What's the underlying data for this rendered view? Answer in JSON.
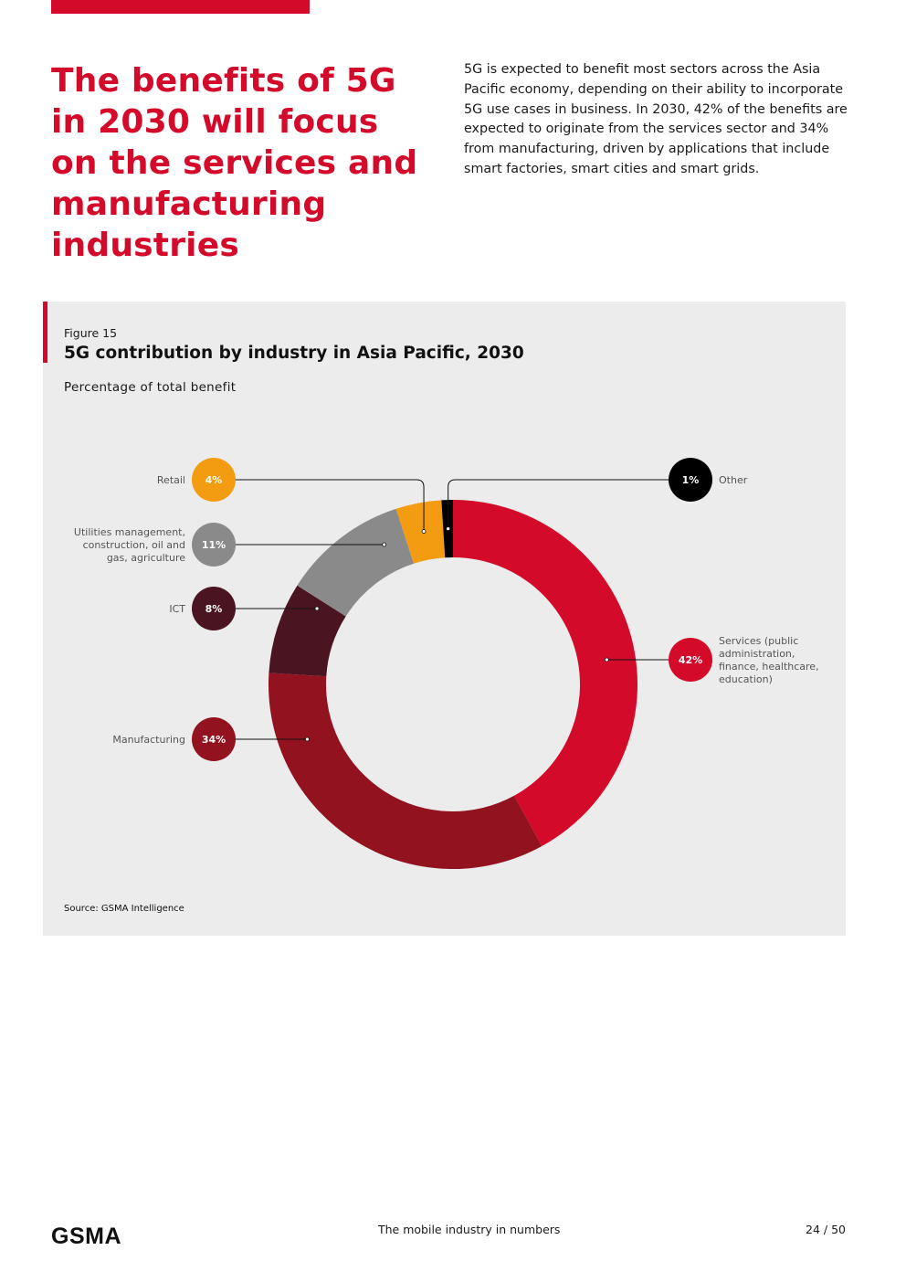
{
  "page": {
    "headline": "The benefits of 5G in 2030 will focus on the services and manufacturing industries",
    "intro": "5G is expected to benefit most sectors across the Asia Pacific economy, depending on their ability to incorporate 5G use cases in business. In 2030, 42% of the benefits are expected to originate from the services sector and 34% from manufacturing, driven by applications that include smart factories, smart cities and smart grids."
  },
  "figure": {
    "label": "Figure 15",
    "source": "Source: GSMA Intelligence"
  },
  "chart_data": {
    "type": "pie",
    "title": "5G contribution by industry in Asia Pacific, 2030",
    "subtitle": "Percentage of total benefit",
    "donut": true,
    "slices": [
      {
        "name": "Services (public administration, finance, healthcare, education)",
        "label_lines": [
          "Services (public",
          "administration,",
          "finance, healthcare,",
          "education)"
        ],
        "value": 42,
        "value_label": "42%",
        "color": "#d40a2a",
        "text_color": "#ffffff",
        "side": "right"
      },
      {
        "name": "Manufacturing",
        "label_lines": [
          "Manufacturing"
        ],
        "value": 34,
        "value_label": "34%",
        "color": "#93121f",
        "text_color": "#ffffff",
        "side": "left"
      },
      {
        "name": "ICT",
        "label_lines": [
          "ICT"
        ],
        "value": 8,
        "value_label": "8%",
        "color": "#4a1520",
        "text_color": "#ffffff",
        "side": "left"
      },
      {
        "name": "Utilities management, construction, oil and gas, agriculture",
        "label_lines": [
          "Utilities management,",
          "construction, oil and",
          "gas, agriculture"
        ],
        "value": 11,
        "value_label": "11%",
        "color": "#8a8a8a",
        "text_color": "#ffffff",
        "side": "left"
      },
      {
        "name": "Retail",
        "label_lines": [
          "Retail"
        ],
        "value": 4,
        "value_label": "4%",
        "color": "#f39c12",
        "text_color": "#ffffff",
        "side": "left"
      },
      {
        "name": "Other",
        "label_lines": [
          "Other"
        ],
        "value": 1,
        "value_label": "1%",
        "color": "#000000",
        "text_color": "#ffffff",
        "side": "right"
      }
    ]
  },
  "footer": {
    "logo": "GSMA",
    "center": "The mobile industry in numbers",
    "page": "24 / 50"
  }
}
